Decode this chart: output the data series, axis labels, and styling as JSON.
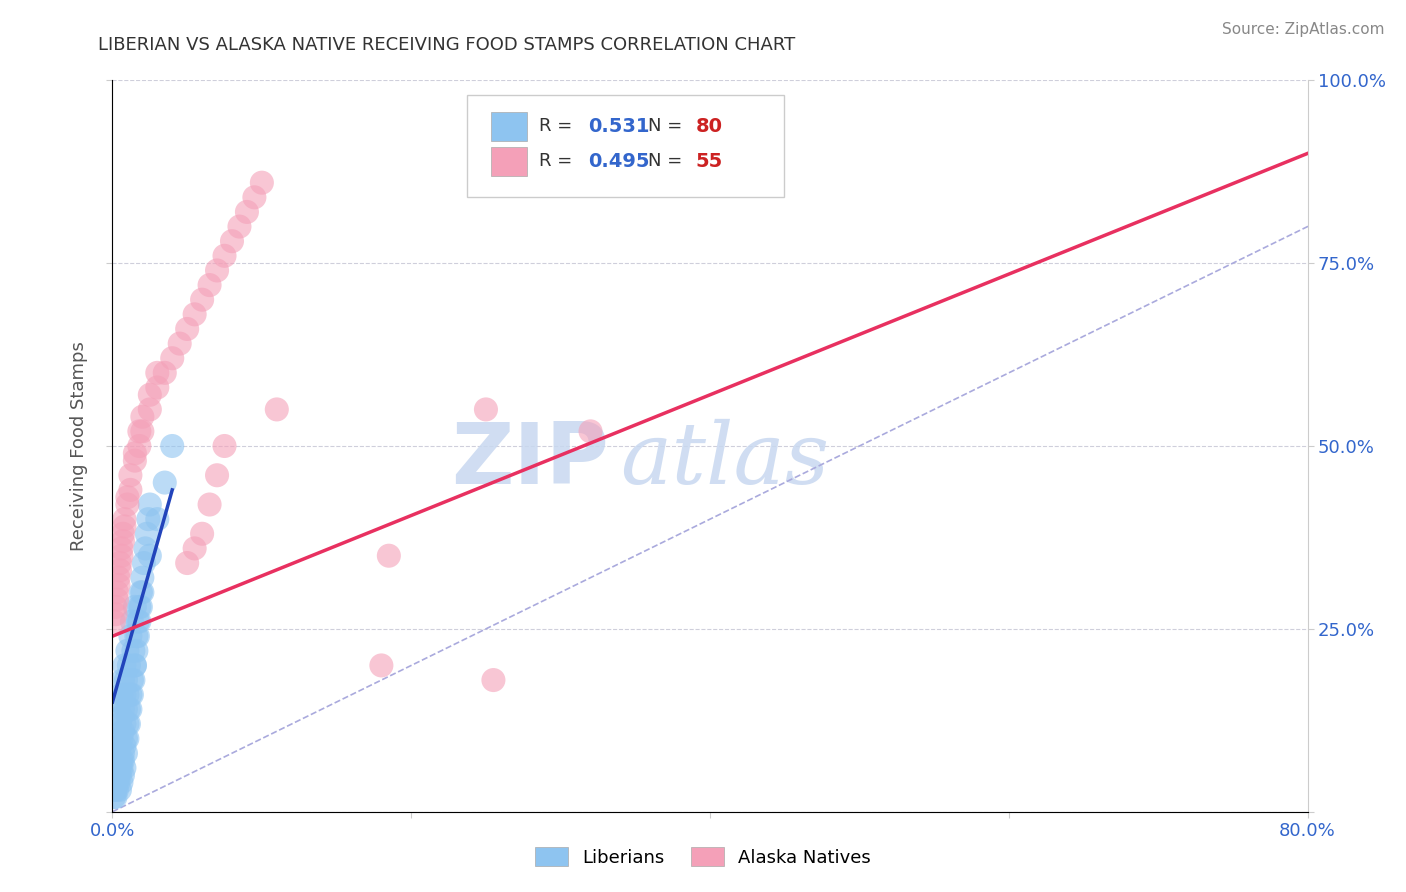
{
  "title": "LIBERIAN VS ALASKA NATIVE RECEIVING FOOD STAMPS CORRELATION CHART",
  "source": "Source: ZipAtlas.com",
  "ylabel": "Receiving Food Stamps",
  "xlim": [
    0.0,
    0.8
  ],
  "ylim": [
    0.0,
    1.0
  ],
  "blue_R": 0.531,
  "blue_N": 80,
  "pink_R": 0.495,
  "pink_N": 55,
  "blue_color": "#8EC4F0",
  "pink_color": "#F4A0B8",
  "blue_line_color": "#2244BB",
  "pink_line_color": "#E83060",
  "ref_line_color": "#AAAADD",
  "watermark_zip": "ZIP",
  "watermark_atlas": "atlas",
  "watermark_color_zip": "#C8D8F0",
  "watermark_color_atlas": "#C8D8F0",
  "blue_scatter_x": [
    0.001,
    0.002,
    0.002,
    0.003,
    0.003,
    0.003,
    0.004,
    0.004,
    0.004,
    0.005,
    0.005,
    0.005,
    0.005,
    0.006,
    0.006,
    0.006,
    0.006,
    0.007,
    0.007,
    0.007,
    0.007,
    0.008,
    0.008,
    0.008,
    0.008,
    0.009,
    0.009,
    0.009,
    0.01,
    0.01,
    0.01,
    0.011,
    0.011,
    0.012,
    0.012,
    0.013,
    0.013,
    0.014,
    0.015,
    0.015,
    0.016,
    0.017,
    0.018,
    0.019,
    0.02,
    0.021,
    0.022,
    0.023,
    0.024,
    0.025,
    0.001,
    0.002,
    0.002,
    0.003,
    0.003,
    0.004,
    0.004,
    0.005,
    0.005,
    0.006,
    0.006,
    0.007,
    0.007,
    0.008,
    0.009,
    0.01,
    0.011,
    0.012,
    0.013,
    0.014,
    0.015,
    0.016,
    0.017,
    0.018,
    0.019,
    0.02,
    0.025,
    0.03,
    0.035,
    0.04
  ],
  "blue_scatter_y": [
    0.02,
    0.03,
    0.05,
    0.04,
    0.06,
    0.07,
    0.05,
    0.08,
    0.1,
    0.06,
    0.09,
    0.12,
    0.15,
    0.07,
    0.1,
    0.13,
    0.16,
    0.08,
    0.11,
    0.14,
    0.18,
    0.09,
    0.12,
    0.16,
    0.2,
    0.1,
    0.14,
    0.18,
    0.12,
    0.16,
    0.22,
    0.14,
    0.2,
    0.16,
    0.24,
    0.18,
    0.26,
    0.22,
    0.2,
    0.28,
    0.24,
    0.26,
    0.28,
    0.3,
    0.32,
    0.34,
    0.36,
    0.38,
    0.4,
    0.42,
    0.03,
    0.02,
    0.04,
    0.03,
    0.05,
    0.04,
    0.06,
    0.03,
    0.05,
    0.04,
    0.06,
    0.05,
    0.07,
    0.06,
    0.08,
    0.1,
    0.12,
    0.14,
    0.16,
    0.18,
    0.2,
    0.22,
    0.24,
    0.26,
    0.28,
    0.3,
    0.35,
    0.4,
    0.45,
    0.5
  ],
  "pink_scatter_x": [
    0.001,
    0.002,
    0.003,
    0.004,
    0.005,
    0.006,
    0.007,
    0.008,
    0.01,
    0.012,
    0.015,
    0.018,
    0.02,
    0.025,
    0.03,
    0.035,
    0.04,
    0.045,
    0.05,
    0.055,
    0.06,
    0.065,
    0.07,
    0.075,
    0.08,
    0.085,
    0.09,
    0.095,
    0.1,
    0.002,
    0.003,
    0.004,
    0.005,
    0.006,
    0.007,
    0.008,
    0.01,
    0.012,
    0.015,
    0.018,
    0.02,
    0.025,
    0.03,
    0.11,
    0.18,
    0.185,
    0.25,
    0.255,
    0.32,
    0.05,
    0.055,
    0.06,
    0.065,
    0.07,
    0.075
  ],
  "pink_scatter_y": [
    0.26,
    0.28,
    0.3,
    0.32,
    0.34,
    0.36,
    0.38,
    0.4,
    0.42,
    0.44,
    0.48,
    0.5,
    0.52,
    0.55,
    0.58,
    0.6,
    0.62,
    0.64,
    0.66,
    0.68,
    0.7,
    0.72,
    0.74,
    0.76,
    0.78,
    0.8,
    0.82,
    0.84,
    0.86,
    0.27,
    0.29,
    0.31,
    0.33,
    0.35,
    0.37,
    0.39,
    0.43,
    0.46,
    0.49,
    0.52,
    0.54,
    0.57,
    0.6,
    0.55,
    0.2,
    0.35,
    0.55,
    0.18,
    0.52,
    0.34,
    0.36,
    0.38,
    0.42,
    0.46,
    0.5
  ],
  "pink_line_x0": 0.0,
  "pink_line_y0": 0.24,
  "pink_line_x1": 0.8,
  "pink_line_y1": 0.9,
  "blue_line_x0": 0.0,
  "blue_line_y0": 0.15,
  "blue_line_x1": 0.04,
  "blue_line_y1": 0.44
}
